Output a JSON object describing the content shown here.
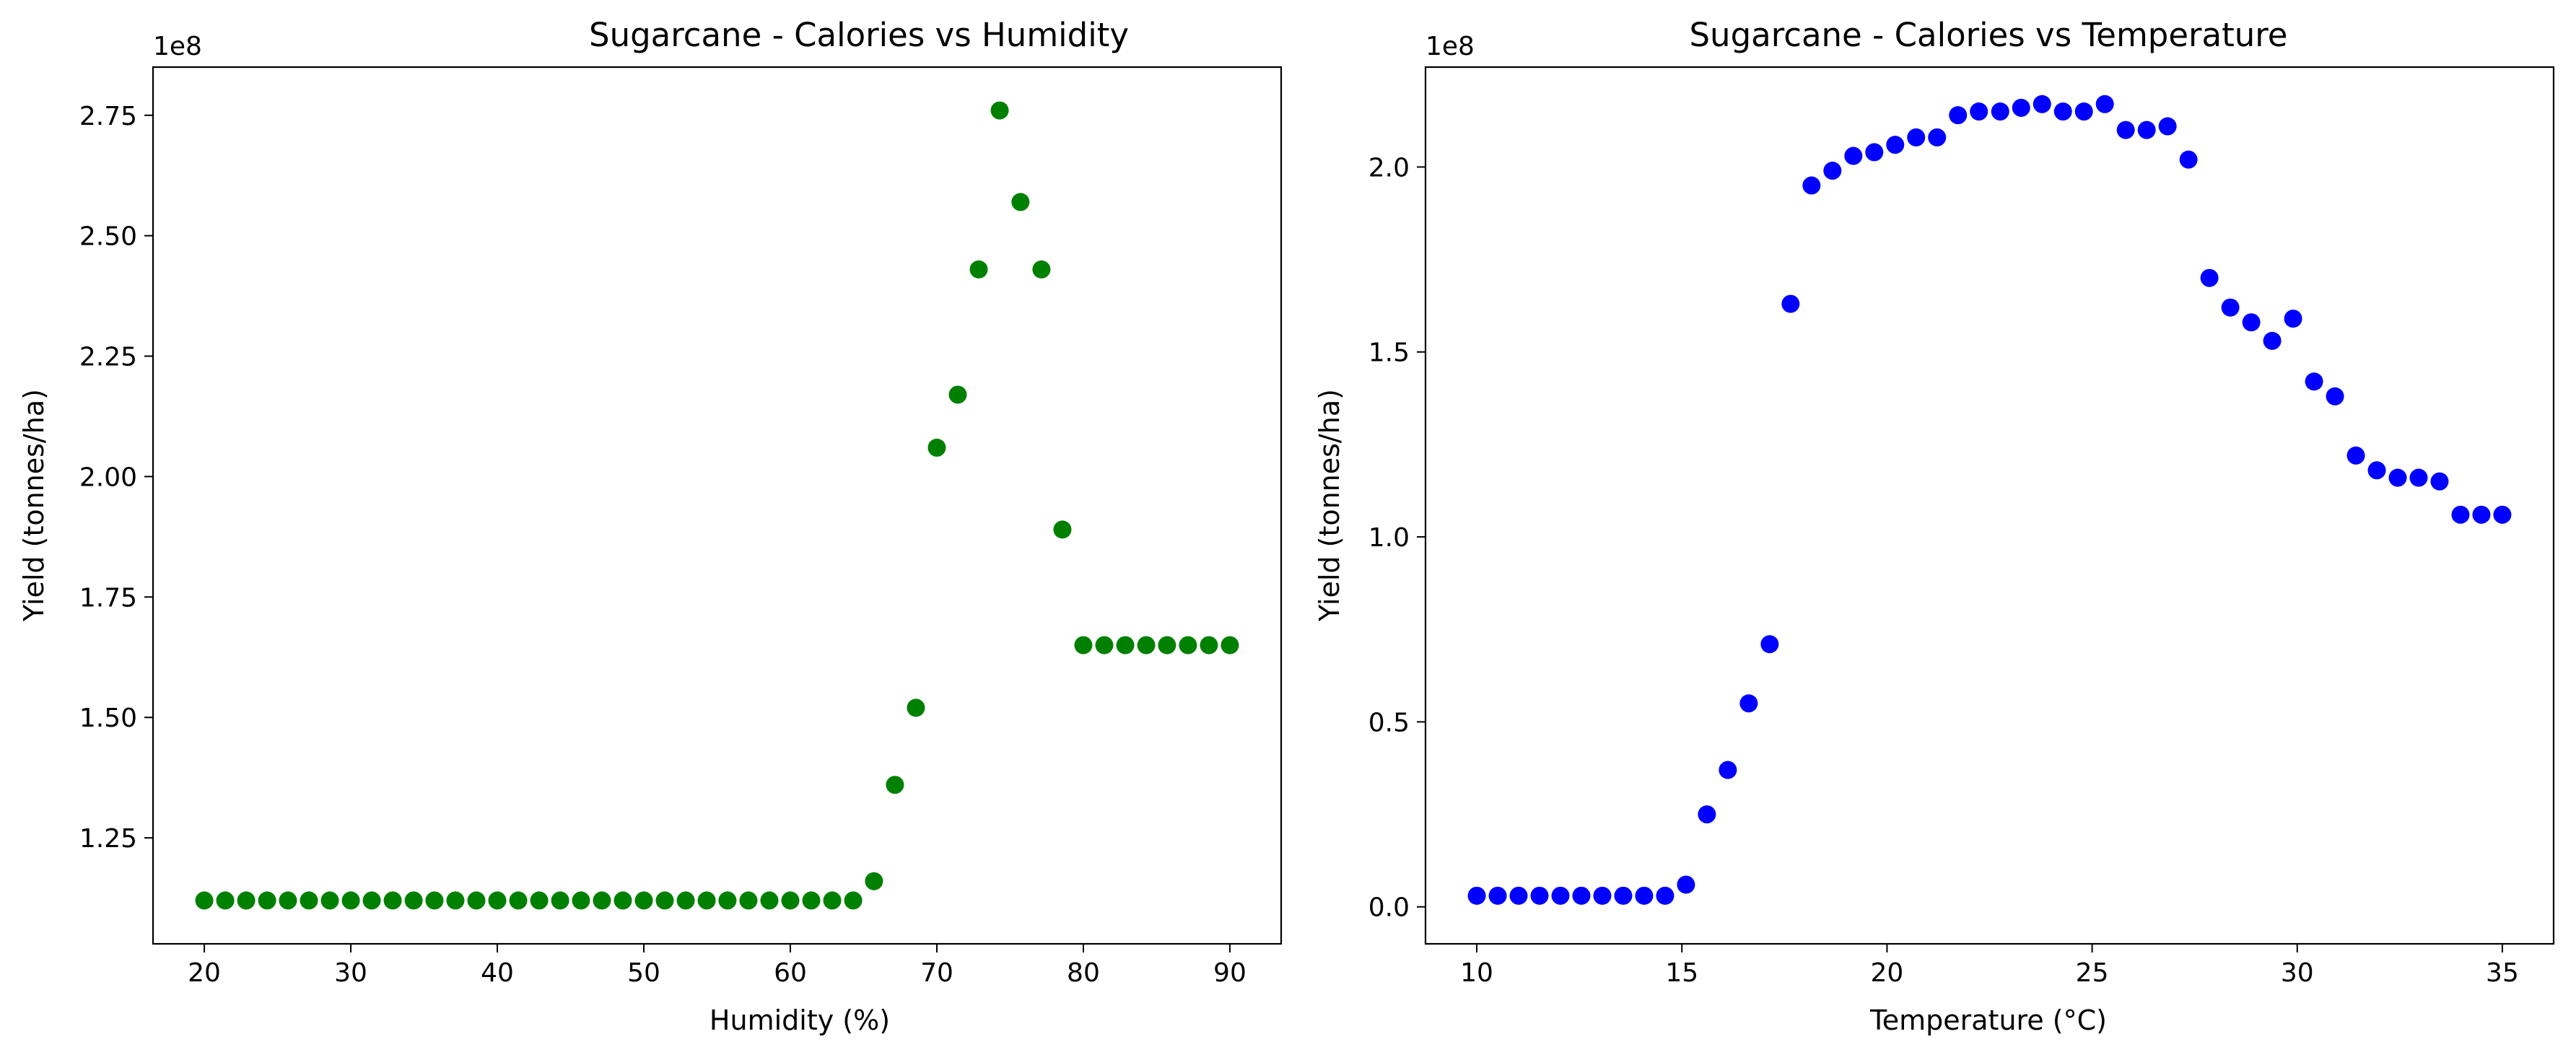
{
  "chart_data": [
    {
      "type": "scatter",
      "title": "Sugarcane - Calories vs Humidity",
      "xlabel": "Humidity (%)",
      "ylabel": "Yield (tonnes/ha)",
      "offset_text": "1e8",
      "xlim": [
        16.5,
        93.5
      ],
      "ylim": [
        103000000.0,
        285000000.0
      ],
      "xticks": [
        20,
        30,
        40,
        50,
        60,
        70,
        80,
        90
      ],
      "xtick_labels": [
        "20",
        "30",
        "40",
        "50",
        "60",
        "70",
        "80",
        "90"
      ],
      "yticks": [
        125000000.0,
        150000000.0,
        175000000.0,
        200000000.0,
        225000000.0,
        250000000.0,
        275000000.0
      ],
      "ytick_labels": [
        "1.25",
        "1.50",
        "1.75",
        "2.00",
        "2.25",
        "2.50",
        "2.75"
      ],
      "grid": false,
      "color": "#008000",
      "x": [
        20.0,
        21.43,
        22.86,
        24.29,
        25.71,
        27.14,
        28.57,
        30.0,
        31.43,
        32.86,
        34.29,
        35.71,
        37.14,
        38.57,
        40.0,
        41.43,
        42.86,
        44.29,
        45.71,
        47.14,
        48.57,
        50.0,
        51.43,
        52.86,
        54.29,
        55.71,
        57.14,
        58.57,
        60.0,
        61.43,
        62.86,
        64.29,
        65.71,
        67.14,
        68.57,
        70.0,
        71.43,
        72.86,
        74.29,
        75.71,
        77.14,
        78.57,
        80.0,
        81.43,
        82.86,
        84.29,
        85.71,
        87.14,
        88.57,
        90.0
      ],
      "y": [
        112000000.0,
        112000000.0,
        112000000.0,
        112000000.0,
        112000000.0,
        112000000.0,
        112000000.0,
        112000000.0,
        112000000.0,
        112000000.0,
        112000000.0,
        112000000.0,
        112000000.0,
        112000000.0,
        112000000.0,
        112000000.0,
        112000000.0,
        112000000.0,
        112000000.0,
        112000000.0,
        112000000.0,
        112000000.0,
        112000000.0,
        112000000.0,
        112000000.0,
        112000000.0,
        112000000.0,
        112000000.0,
        112000000.0,
        112000000.0,
        112000000.0,
        112000000.0,
        116000000.0,
        136000000.0,
        152000000.0,
        206000000.0,
        217000000.0,
        243000000.0,
        276000000.0,
        257000000.0,
        243000000.0,
        189000000.0,
        165000000.0,
        165000000.0,
        165000000.0,
        165000000.0,
        165000000.0,
        165000000.0,
        165000000.0,
        165000000.0
      ]
    },
    {
      "type": "scatter",
      "title": "Sugarcane - Calories vs Temperature",
      "xlabel": "Temperature (°C)",
      "ylabel": "Yield (tonnes/ha)",
      "offset_text": "1e8",
      "xlim": [
        8.75,
        36.25
      ],
      "ylim": [
        -10000000.0,
        227000000.0
      ],
      "xticks": [
        10,
        15,
        20,
        25,
        30,
        35
      ],
      "xtick_labels": [
        "10",
        "15",
        "20",
        "25",
        "30",
        "35"
      ],
      "yticks": [
        0,
        50000000.0,
        100000000.0,
        150000000.0,
        200000000.0
      ],
      "ytick_labels": [
        "0.0",
        "0.5",
        "1.0",
        "1.5",
        "2.0"
      ],
      "grid": false,
      "color": "#0000ff",
      "x": [
        10.0,
        10.51,
        11.02,
        11.53,
        12.04,
        12.55,
        13.06,
        13.57,
        14.08,
        14.59,
        15.1,
        15.61,
        16.12,
        16.63,
        17.14,
        17.65,
        18.16,
        18.67,
        19.18,
        19.69,
        20.2,
        20.71,
        21.22,
        21.73,
        22.24,
        22.76,
        23.27,
        23.78,
        24.29,
        24.8,
        25.31,
        25.82,
        26.33,
        26.84,
        27.35,
        27.86,
        28.37,
        28.88,
        29.39,
        29.9,
        30.41,
        30.92,
        31.43,
        31.94,
        32.45,
        32.96,
        33.47,
        33.98,
        34.49,
        35.0
      ],
      "y": [
        3000000.0,
        3000000.0,
        3000000.0,
        3000000.0,
        3000000.0,
        3000000.0,
        3000000.0,
        3000000.0,
        3000000.0,
        3000000.0,
        6000000.0,
        25000000.0,
        37000000.0,
        55000000.0,
        71000000.0,
        163000000.0,
        195000000.0,
        199000000.0,
        203000000.0,
        204000000.0,
        206000000.0,
        208000000.0,
        208000000.0,
        214000000.0,
        215000000.0,
        215000000.0,
        216000000.0,
        217000000.0,
        215000000.0,
        215000000.0,
        217000000.0,
        210000000.0,
        210000000.0,
        211000000.0,
        202000000.0,
        170000000.0,
        162000000.0,
        158000000.0,
        153000000.0,
        159000000.0,
        142000000.0,
        138000000.0,
        122000000.0,
        118000000.0,
        116000000.0,
        116000000.0,
        115000000.0,
        106000000.0,
        106000000.0,
        106000000.0
      ]
    }
  ]
}
